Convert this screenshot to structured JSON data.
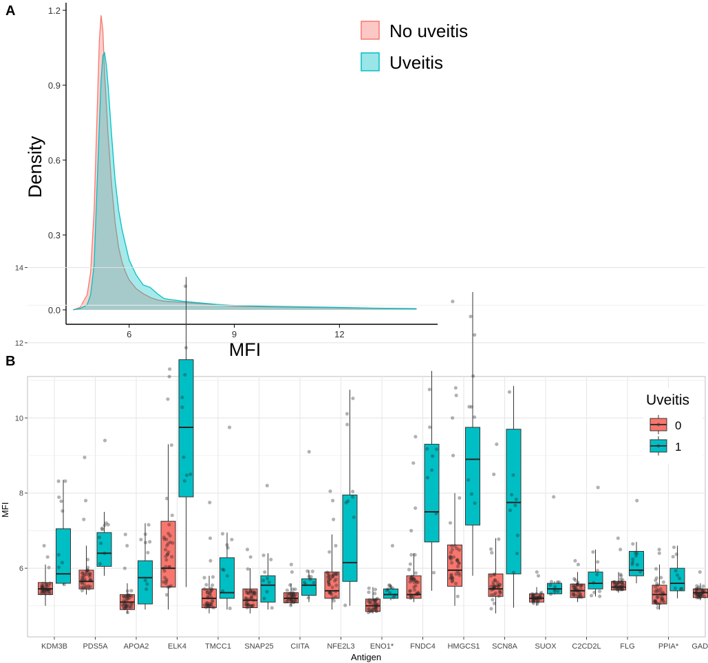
{
  "panel_a": {
    "label": "A",
    "colors": {
      "no_uveitis_fill": "#f8766d",
      "no_uveitis_line": "#f8766d",
      "uveitis_fill": "#00bfc4",
      "uveitis_line": "#00bfc4"
    }
  },
  "panel_b": {
    "label": "B",
    "colors": {
      "group0": "#f8766d",
      "group1": "#00bfc4"
    }
  },
  "chart_data": [
    {
      "type": "area",
      "subtype": "density",
      "title": "",
      "xlabel": "MFI",
      "ylabel": "Density",
      "xlim": [
        4.2,
        14.8
      ],
      "ylim": [
        0,
        1.2
      ],
      "xticks": [
        6,
        9,
        12
      ],
      "yticks": [
        0.0,
        0.3,
        0.6,
        0.9,
        1.2
      ],
      "ytick_labels": [
        "0.0",
        "0.3",
        "0.6",
        "0.9",
        "1.2"
      ],
      "legend": {
        "position": "top-right",
        "entries": [
          "No uveitis",
          "Uveitis"
        ]
      },
      "series": [
        {
          "name": "No uveitis",
          "x": [
            4.4,
            4.6,
            4.8,
            4.9,
            5.0,
            5.1,
            5.15,
            5.2,
            5.25,
            5.3,
            5.4,
            5.5,
            5.6,
            5.7,
            5.8,
            5.9,
            6.0,
            6.2,
            6.4,
            6.6,
            6.8,
            7.0,
            7.5,
            8.0,
            8.5,
            9.0,
            10.0,
            11.0,
            12.0,
            13.0,
            14.2
          ],
          "values": [
            0.0,
            0.01,
            0.06,
            0.15,
            0.4,
            0.85,
            1.08,
            1.18,
            1.12,
            0.95,
            0.7,
            0.5,
            0.35,
            0.25,
            0.19,
            0.15,
            0.12,
            0.085,
            0.065,
            0.05,
            0.04,
            0.035,
            0.03,
            0.025,
            0.02,
            0.015,
            0.012,
            0.01,
            0.008,
            0.006,
            0.004
          ]
        },
        {
          "name": "Uveitis",
          "x": [
            4.4,
            4.6,
            4.8,
            4.9,
            5.0,
            5.1,
            5.2,
            5.25,
            5.3,
            5.35,
            5.4,
            5.5,
            5.6,
            5.7,
            5.8,
            5.9,
            6.0,
            6.2,
            6.4,
            6.6,
            6.8,
            7.0,
            7.5,
            8.0,
            8.5,
            9.0,
            10.0,
            11.0,
            12.0,
            13.0,
            14.2
          ],
          "values": [
            0.0,
            0.005,
            0.02,
            0.06,
            0.18,
            0.55,
            0.92,
            1.02,
            1.03,
            0.98,
            0.9,
            0.7,
            0.52,
            0.4,
            0.32,
            0.26,
            0.2,
            0.14,
            0.1,
            0.09,
            0.065,
            0.045,
            0.035,
            0.028,
            0.022,
            0.018,
            0.014,
            0.012,
            0.01,
            0.007,
            0.005
          ]
        }
      ]
    },
    {
      "type": "box",
      "title": "",
      "xlabel": "Antigen",
      "ylabel": "MFI",
      "ylim": [
        4.6,
        14.1
      ],
      "yticks": [
        6,
        8,
        10,
        12,
        14
      ],
      "legend": {
        "title": "Uveitis",
        "position": "top-right",
        "entries": [
          "0",
          "1"
        ]
      },
      "categories": [
        "KDM3B",
        "PDS5A",
        "APOA2",
        "ELK4",
        "TMCC1",
        "SNAP25",
        "CIITA",
        "NFE2L3",
        "ENO1*",
        "FNDC4",
        "HMGCS1",
        "SCN8A",
        "SUOX",
        "C2CD2L",
        "FLG",
        "PPIA*",
        "GADD45B"
      ],
      "series": [
        {
          "name": "0",
          "boxes": [
            {
              "whisker_low": 5.0,
              "q1": 5.3,
              "median": 5.45,
              "q3": 5.62,
              "whisker_high": 6.1,
              "outliers": [
                6.3,
                6.6
              ]
            },
            {
              "whisker_low": 5.3,
              "q1": 5.45,
              "median": 5.65,
              "q3": 5.95,
              "whisker_high": 6.6,
              "outliers": [
                7.3,
                7.8,
                8.95
              ]
            },
            {
              "whisker_low": 4.8,
              "q1": 4.9,
              "median": 5.1,
              "q3": 5.3,
              "whisker_high": 5.6,
              "outliers": [
                6.0,
                6.6,
                6.9
              ]
            },
            {
              "whisker_low": 4.9,
              "q1": 5.5,
              "median": 6.0,
              "q3": 7.25,
              "whisker_high": 9.3,
              "outliers": [
                10.5,
                11.1,
                11.3
              ]
            },
            {
              "whisker_low": 4.8,
              "q1": 4.95,
              "median": 5.2,
              "q3": 5.45,
              "whisker_high": 5.8,
              "outliers": [
                6.2,
                6.8,
                7.75
              ]
            },
            {
              "whisker_low": 4.8,
              "q1": 4.95,
              "median": 5.15,
              "q3": 5.45,
              "whisker_high": 6.0,
              "outliers": [
                6.3,
                6.5
              ]
            },
            {
              "whisker_low": 5.0,
              "q1": 5.08,
              "median": 5.2,
              "q3": 5.35,
              "whisker_high": 5.6,
              "outliers": [
                5.9,
                6.1
              ]
            },
            {
              "whisker_low": 4.9,
              "q1": 5.2,
              "median": 5.4,
              "q3": 5.9,
              "whisker_high": 6.9,
              "outliers": [
                7.3,
                7.8,
                8.05
              ]
            },
            {
              "whisker_low": 4.8,
              "q1": 4.85,
              "median": 5.0,
              "q3": 5.18,
              "whisker_high": 5.5,
              "outliers": []
            },
            {
              "whisker_low": 5.1,
              "q1": 5.2,
              "median": 5.3,
              "q3": 5.8,
              "whisker_high": 6.4,
              "outliers": [
                7.0,
                7.6,
                8.8,
                9.5
              ]
            },
            {
              "whisker_low": 5.0,
              "q1": 5.52,
              "median": 5.95,
              "q3": 6.62,
              "whisker_high": 8.0,
              "outliers": [
                9.0,
                10.0,
                10.6,
                10.8,
                13.1
              ]
            },
            {
              "whisker_low": 4.8,
              "q1": 5.25,
              "median": 5.45,
              "q3": 5.85,
              "whisker_high": 6.8,
              "outliers": [
                8.5,
                9.3
              ]
            },
            {
              "whisker_low": 5.0,
              "q1": 5.1,
              "median": 5.2,
              "q3": 5.32,
              "whisker_high": 5.5,
              "outliers": [
                5.8,
                5.9
              ]
            },
            {
              "whisker_low": 5.1,
              "q1": 5.22,
              "median": 5.4,
              "q3": 5.58,
              "whisker_high": 5.9,
              "outliers": [
                6.1,
                6.2
              ]
            },
            {
              "whisker_low": 5.35,
              "q1": 5.42,
              "median": 5.5,
              "q3": 5.65,
              "whisker_high": 5.9,
              "outliers": [
                6.5,
                6.8
              ]
            },
            {
              "whisker_low": 4.9,
              "q1": 5.05,
              "median": 5.3,
              "q3": 5.55,
              "whisker_high": 6.1,
              "outliers": [
                6.4,
                6.5
              ]
            },
            {
              "whisker_low": 5.15,
              "q1": 5.22,
              "median": 5.35,
              "q3": 5.45,
              "whisker_high": 5.6,
              "outliers": [
                5.9
              ]
            }
          ]
        },
        {
          "name": "1",
          "boxes": [
            {
              "whisker_low": 5.55,
              "q1": 5.6,
              "median": 5.85,
              "q3": 7.05,
              "whisker_high": 8.35,
              "outliers": []
            },
            {
              "whisker_low": 5.8,
              "q1": 6.05,
              "median": 6.4,
              "q3": 6.95,
              "whisker_high": 7.5,
              "outliers": [
                9.4
              ]
            },
            {
              "whisker_low": 4.9,
              "q1": 5.05,
              "median": 5.75,
              "q3": 6.2,
              "whisker_high": 7.2,
              "outliers": []
            },
            {
              "whisker_low": 5.5,
              "q1": 7.9,
              "median": 9.75,
              "q3": 11.55,
              "whisker_high": 13.75,
              "outliers": []
            },
            {
              "whisker_low": 4.9,
              "q1": 5.2,
              "median": 5.35,
              "q3": 6.28,
              "whisker_high": 6.95,
              "outliers": [
                9.75
              ]
            },
            {
              "whisker_low": 4.9,
              "q1": 5.1,
              "median": 5.55,
              "q3": 5.8,
              "whisker_high": 6.4,
              "outliers": [
                8.2
              ]
            },
            {
              "whisker_low": 5.1,
              "q1": 5.28,
              "median": 5.55,
              "q3": 5.72,
              "whisker_high": 5.95,
              "outliers": [
                9.1
              ]
            },
            {
              "whisker_low": 5.0,
              "q1": 5.65,
              "median": 6.15,
              "q3": 7.95,
              "whisker_high": 10.75,
              "outliers": []
            },
            {
              "whisker_low": 5.15,
              "q1": 5.2,
              "median": 5.3,
              "q3": 5.45,
              "whisker_high": 5.55,
              "outliers": [
                6.6
              ]
            },
            {
              "whisker_low": 5.4,
              "q1": 6.7,
              "median": 7.5,
              "q3": 9.3,
              "whisker_high": 11.25,
              "outliers": []
            },
            {
              "whisker_low": 5.8,
              "q1": 7.15,
              "median": 8.9,
              "q3": 9.75,
              "whisker_high": 13.35,
              "outliers": []
            },
            {
              "whisker_low": 4.95,
              "q1": 5.85,
              "median": 7.75,
              "q3": 9.7,
              "whisker_high": 10.85,
              "outliers": []
            },
            {
              "whisker_low": 5.3,
              "q1": 5.32,
              "median": 5.45,
              "q3": 5.6,
              "whisker_high": 5.65,
              "outliers": [
                7.9
              ]
            },
            {
              "whisker_low": 5.25,
              "q1": 5.45,
              "median": 5.6,
              "q3": 5.9,
              "whisker_high": 6.5,
              "outliers": [
                8.15
              ]
            },
            {
              "whisker_low": 5.6,
              "q1": 5.8,
              "median": 5.95,
              "q3": 6.45,
              "whisker_high": 6.7,
              "outliers": [
                7.8
              ]
            },
            {
              "whisker_low": 5.2,
              "q1": 5.4,
              "median": 5.6,
              "q3": 6.0,
              "whisker_high": 6.6,
              "outliers": []
            },
            {
              "whisker_low": 5.35,
              "q1": 5.45,
              "median": 5.55,
              "q3": 5.78,
              "whisker_high": 5.85,
              "outliers": [
                6.65
              ]
            }
          ]
        }
      ]
    }
  ]
}
